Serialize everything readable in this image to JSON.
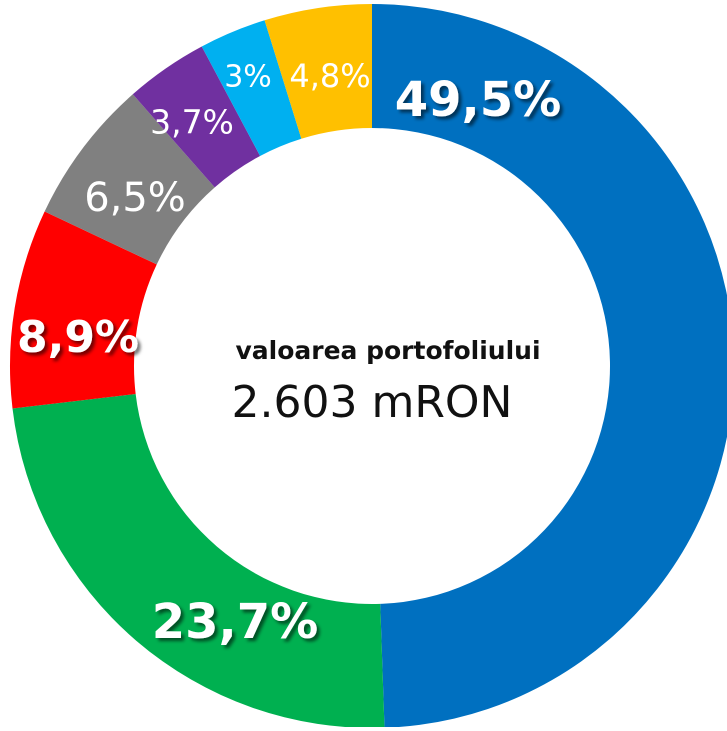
{
  "chart_data": {
    "type": "donut",
    "values": [
      49.5,
      23.7,
      8.9,
      6.5,
      3.7,
      3,
      4.8
    ],
    "value_labels": [
      "49,5%",
      "23,7%",
      "8,9%",
      "6,5%",
      "3,7%",
      "3%",
      "4,8%"
    ],
    "colors": [
      "#0070c0",
      "#00b050",
      "#ff0000",
      "#808080",
      "#7030a0",
      "#00b0f0",
      "#ffc000"
    ],
    "center_title": "valoarea portofoliului",
    "center_value": "2.603 mRON"
  }
}
